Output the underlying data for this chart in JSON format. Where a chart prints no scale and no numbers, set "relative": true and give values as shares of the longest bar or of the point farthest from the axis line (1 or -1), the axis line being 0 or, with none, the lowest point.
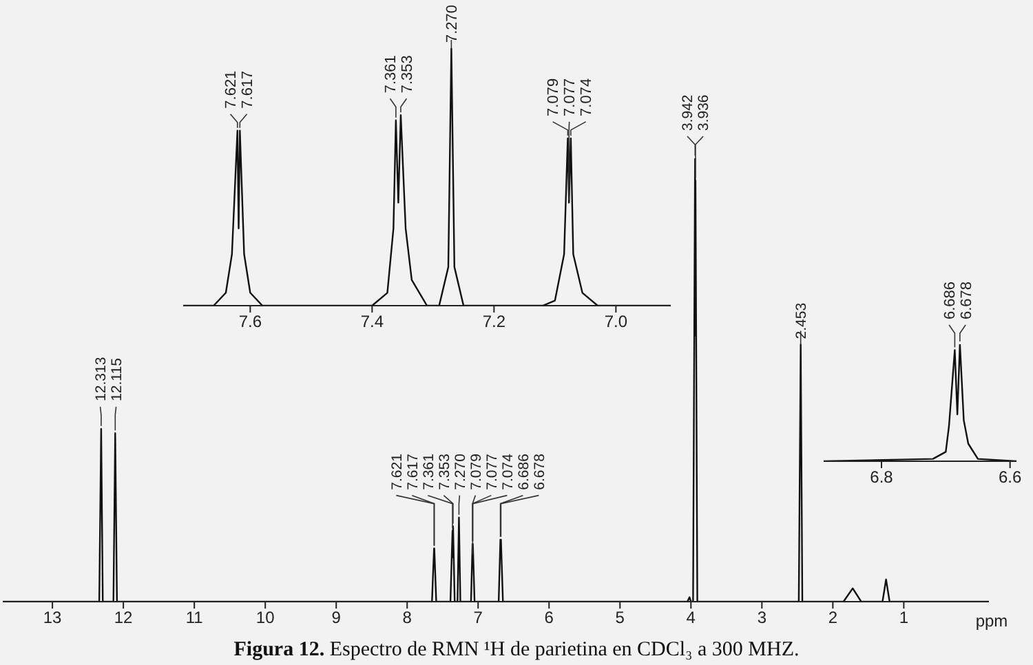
{
  "chart_data": [
    {
      "type": "line",
      "title": "Figura 12. Espectro de RMN ¹H de parietina en CDCl₃ a 300 MHZ.",
      "xlabel": "ppm",
      "relative": true,
      "xlim": [
        13.7,
        -0.2
      ],
      "xticks": [
        13,
        12,
        11,
        10,
        9,
        8,
        7,
        6,
        5,
        4,
        3,
        2,
        1
      ],
      "x": [
        13.7,
        12.34,
        12.313,
        12.29,
        12.14,
        12.115,
        12.09,
        7.65,
        7.621,
        7.619,
        7.617,
        7.59,
        7.39,
        7.361,
        7.357,
        7.353,
        7.33,
        7.29,
        7.27,
        7.25,
        7.1,
        7.079,
        7.077,
        7.074,
        7.05,
        6.71,
        6.686,
        6.682,
        6.678,
        6.65,
        4.05,
        4.02,
        4.0,
        3.97,
        3.942,
        3.939,
        3.936,
        3.91,
        2.48,
        2.453,
        2.43,
        1.85,
        1.72,
        1.6,
        1.3,
        1.25,
        1.2,
        -0.2
      ],
      "series": [
        {
          "color": "#111111",
          "values": [
            0,
            0,
            0.39,
            0,
            0,
            0.38,
            0,
            0,
            0.12,
            0.08,
            0.12,
            0,
            0,
            0.16,
            0.1,
            0.17,
            0,
            0,
            0.19,
            0,
            0,
            0.13,
            0.1,
            0.13,
            0,
            0,
            0.14,
            0.1,
            0.14,
            0,
            0,
            0.01,
            0,
            0,
            1,
            0.6,
            0.95,
            0,
            0,
            0.58,
            0,
            0,
            0.03,
            0,
            0,
            0.05,
            0,
            0
          ]
        }
      ],
      "annotations": [
        {
          "text": "12.313",
          "x": 12.313,
          "y": 0.39
        },
        {
          "text": "12.115",
          "x": 12.115,
          "y": 0.38
        },
        {
          "text": "7.621",
          "x": 7.621,
          "y": 0.12
        },
        {
          "text": "7.617",
          "x": 7.617,
          "y": 0.12
        },
        {
          "text": "7.361",
          "x": 7.361,
          "y": 0.16
        },
        {
          "text": "7.353",
          "x": 7.353,
          "y": 0.17
        },
        {
          "text": "7.270",
          "x": 7.27,
          "y": 0.19
        },
        {
          "text": "7.079",
          "x": 7.079,
          "y": 0.13
        },
        {
          "text": "7.077",
          "x": 7.077,
          "y": 0.1
        },
        {
          "text": "7.074",
          "x": 7.074,
          "y": 0.13
        },
        {
          "text": "6.686",
          "x": 6.686,
          "y": 0.14
        },
        {
          "text": "6.678",
          "x": 6.678,
          "y": 0.14
        },
        {
          "text": "3.942",
          "x": 3.942,
          "y": 1
        },
        {
          "text": "3.936",
          "x": 3.936,
          "y": 0.95
        },
        {
          "text": "2.453",
          "x": 2.453,
          "y": 0.58
        }
      ]
    },
    {
      "type": "line",
      "relative": true,
      "xlim": [
        7.71,
        6.91
      ],
      "xticks": [
        7.6,
        7.4,
        7.2,
        {
          "value": 7,
          "label": "7.0"
        }
      ],
      "x": [
        7.71,
        7.66,
        7.64,
        7.63,
        7.621,
        7.619,
        7.617,
        7.61,
        7.6,
        7.58,
        7.4,
        7.375,
        7.365,
        7.361,
        7.357,
        7.353,
        7.345,
        7.335,
        7.31,
        7.29,
        7.275,
        7.27,
        7.265,
        7.25,
        7.12,
        7.1,
        7.085,
        7.079,
        7.077,
        7.074,
        7.07,
        7.055,
        7.03,
        6.91
      ],
      "series": [
        {
          "color": "#111111",
          "values": [
            0,
            0,
            0.05,
            0.2,
            0.68,
            0.3,
            0.68,
            0.2,
            0.05,
            0,
            0,
            0.05,
            0.3,
            0.72,
            0.4,
            0.74,
            0.3,
            0.1,
            0,
            0,
            0.15,
            1,
            0.15,
            0,
            0,
            0.02,
            0.2,
            0.65,
            0.4,
            0.65,
            0.2,
            0.05,
            0,
            0
          ]
        }
      ],
      "annotations": [
        {
          "text": "7.621",
          "x": 7.621,
          "y": 0.68
        },
        {
          "text": "7.617",
          "x": 7.617,
          "y": 0.68
        },
        {
          "text": "7.361",
          "x": 7.361,
          "y": 0.72
        },
        {
          "text": "7.353",
          "x": 7.353,
          "y": 0.74
        },
        {
          "text": "7.270",
          "x": 7.27,
          "y": 1
        },
        {
          "text": "7.079",
          "x": 7.079,
          "y": 0.65
        },
        {
          "text": "7.077",
          "x": 7.077,
          "y": 0.4
        },
        {
          "text": "7.074",
          "x": 7.074,
          "y": 0.65
        }
      ]
    },
    {
      "type": "line",
      "relative": true,
      "xlim": [
        6.89,
        6.59
      ],
      "xticks": [
        6.8,
        6.6
      ],
      "x": [
        6.89,
        6.72,
        6.7,
        6.695,
        6.686,
        6.682,
        6.678,
        6.672,
        6.665,
        6.65,
        6.59
      ],
      "series": [
        {
          "color": "#111111",
          "values": [
            0,
            0.02,
            0.08,
            0.3,
            0.95,
            0.4,
            1,
            0.35,
            0.15,
            0.02,
            0
          ]
        }
      ],
      "annotations": [
        {
          "text": "6.686",
          "x": 6.686,
          "y": 0.95
        },
        {
          "text": "6.678",
          "x": 6.678,
          "y": 1
        }
      ]
    }
  ]
}
